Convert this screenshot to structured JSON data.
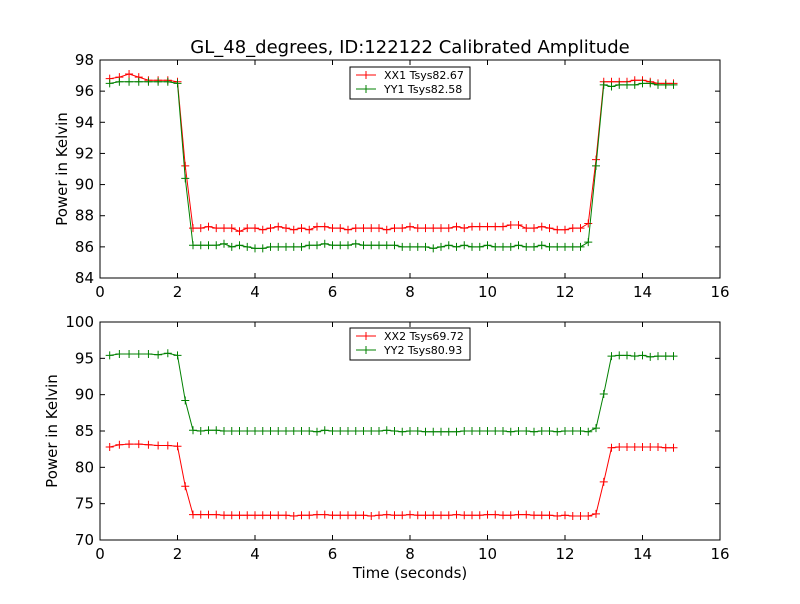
{
  "figure_title": "GL_48_degrees, ID:122122 Calibrated Amplitude",
  "colors": {
    "red": "#ff0000",
    "green": "#008000",
    "axes": "#000000"
  },
  "chart_data": [
    {
      "type": "line",
      "title": "GL_48_degrees, ID:122122 Calibrated Amplitude",
      "xlabel": "",
      "ylabel": "Power in Kelvin",
      "xlim": [
        0,
        16
      ],
      "ylim": [
        84,
        98
      ],
      "xticks": [
        0,
        2,
        4,
        6,
        8,
        10,
        12,
        14,
        16
      ],
      "yticks": [
        84,
        86,
        88,
        90,
        92,
        94,
        96,
        98
      ],
      "grid": false,
      "legend_position": "top-center",
      "x": [
        0.25,
        0.5,
        0.75,
        1.0,
        1.25,
        1.5,
        1.75,
        2.0,
        2.2,
        2.4,
        2.6,
        2.8,
        3.0,
        3.2,
        3.4,
        3.6,
        3.8,
        4.0,
        4.2,
        4.4,
        4.6,
        4.8,
        5.0,
        5.2,
        5.4,
        5.6,
        5.8,
        6.0,
        6.2,
        6.4,
        6.6,
        6.8,
        7.0,
        7.2,
        7.4,
        7.6,
        7.8,
        8.0,
        8.2,
        8.4,
        8.6,
        8.8,
        9.0,
        9.2,
        9.4,
        9.6,
        9.8,
        10.0,
        10.2,
        10.4,
        10.6,
        10.8,
        11.0,
        11.2,
        11.4,
        11.6,
        11.8,
        12.0,
        12.2,
        12.4,
        12.6,
        12.8,
        13.0,
        13.2,
        13.4,
        13.6,
        13.8,
        14.0,
        14.2,
        14.4,
        14.6,
        14.8
      ],
      "series": [
        {
          "name": "XX1 Tsys82.67",
          "color": "#ff0000",
          "values": [
            96.8,
            96.9,
            97.1,
            96.9,
            96.7,
            96.7,
            96.7,
            96.6,
            91.2,
            87.2,
            87.2,
            87.3,
            87.2,
            87.2,
            87.2,
            87.0,
            87.2,
            87.2,
            87.1,
            87.2,
            87.3,
            87.2,
            87.1,
            87.2,
            87.1,
            87.3,
            87.3,
            87.2,
            87.2,
            87.1,
            87.2,
            87.2,
            87.2,
            87.2,
            87.1,
            87.2,
            87.2,
            87.3,
            87.2,
            87.2,
            87.2,
            87.2,
            87.2,
            87.3,
            87.2,
            87.3,
            87.3,
            87.3,
            87.3,
            87.3,
            87.4,
            87.4,
            87.2,
            87.2,
            87.3,
            87.2,
            87.1,
            87.1,
            87.2,
            87.2,
            87.5,
            91.6,
            96.6,
            96.6,
            96.6,
            96.6,
            96.7,
            96.7,
            96.6,
            96.5,
            96.5,
            96.5
          ]
        },
        {
          "name": "YY1 Tsys82.58",
          "color": "#008000",
          "values": [
            96.5,
            96.6,
            96.6,
            96.6,
            96.6,
            96.6,
            96.6,
            96.5,
            90.4,
            86.1,
            86.1,
            86.1,
            86.1,
            86.2,
            86.0,
            86.1,
            86.0,
            85.9,
            85.9,
            86.0,
            86.0,
            86.0,
            86.0,
            86.0,
            86.1,
            86.1,
            86.2,
            86.1,
            86.1,
            86.1,
            86.2,
            86.1,
            86.1,
            86.1,
            86.1,
            86.1,
            86.0,
            86.0,
            86.0,
            86.0,
            85.9,
            86.0,
            86.1,
            86.0,
            86.1,
            86.0,
            86.0,
            86.1,
            86.0,
            86.0,
            86.0,
            86.1,
            86.0,
            86.0,
            86.1,
            86.0,
            86.0,
            86.0,
            86.0,
            86.0,
            86.3,
            91.2,
            96.4,
            96.3,
            96.4,
            96.4,
            96.4,
            96.5,
            96.5,
            96.4,
            96.4,
            96.4
          ]
        }
      ]
    },
    {
      "type": "line",
      "title": "",
      "xlabel": "Time (seconds)",
      "ylabel": "Power in Kelvin",
      "xlim": [
        0,
        16
      ],
      "ylim": [
        70,
        100
      ],
      "xticks": [
        0,
        2,
        4,
        6,
        8,
        10,
        12,
        14,
        16
      ],
      "yticks": [
        70,
        75,
        80,
        85,
        90,
        95,
        100
      ],
      "grid": false,
      "legend_position": "top-center",
      "x": [
        0.25,
        0.5,
        0.75,
        1.0,
        1.25,
        1.5,
        1.75,
        2.0,
        2.2,
        2.4,
        2.6,
        2.8,
        3.0,
        3.2,
        3.4,
        3.6,
        3.8,
        4.0,
        4.2,
        4.4,
        4.6,
        4.8,
        5.0,
        5.2,
        5.4,
        5.6,
        5.8,
        6.0,
        6.2,
        6.4,
        6.6,
        6.8,
        7.0,
        7.2,
        7.4,
        7.6,
        7.8,
        8.0,
        8.2,
        8.4,
        8.6,
        8.8,
        9.0,
        9.2,
        9.4,
        9.6,
        9.8,
        10.0,
        10.2,
        10.4,
        10.6,
        10.8,
        11.0,
        11.2,
        11.4,
        11.6,
        11.8,
        12.0,
        12.2,
        12.4,
        12.6,
        12.8,
        13.0,
        13.2,
        13.4,
        13.6,
        13.8,
        14.0,
        14.2,
        14.4,
        14.6,
        14.8
      ],
      "series": [
        {
          "name": "XX2 Tsys69.72",
          "color": "#ff0000",
          "values": [
            82.8,
            83.1,
            83.2,
            83.2,
            83.1,
            83.0,
            83.0,
            82.9,
            77.4,
            73.5,
            73.5,
            73.5,
            73.5,
            73.4,
            73.4,
            73.4,
            73.4,
            73.4,
            73.4,
            73.4,
            73.4,
            73.4,
            73.3,
            73.4,
            73.4,
            73.5,
            73.5,
            73.4,
            73.4,
            73.4,
            73.4,
            73.4,
            73.3,
            73.4,
            73.5,
            73.4,
            73.4,
            73.5,
            73.4,
            73.4,
            73.4,
            73.4,
            73.4,
            73.5,
            73.4,
            73.4,
            73.4,
            73.5,
            73.5,
            73.4,
            73.4,
            73.5,
            73.5,
            73.4,
            73.4,
            73.4,
            73.3,
            73.4,
            73.3,
            73.3,
            73.3,
            73.6,
            78.0,
            82.7,
            82.8,
            82.8,
            82.8,
            82.8,
            82.8,
            82.8,
            82.7,
            82.7
          ]
        },
        {
          "name": "YY2 Tsys80.93",
          "color": "#008000",
          "values": [
            95.4,
            95.6,
            95.6,
            95.6,
            95.6,
            95.5,
            95.7,
            95.4,
            89.2,
            85.1,
            85.0,
            85.1,
            85.1,
            85.0,
            85.0,
            85.0,
            85.0,
            85.0,
            85.0,
            85.0,
            85.0,
            85.0,
            85.0,
            85.0,
            85.0,
            84.9,
            85.1,
            85.0,
            85.0,
            85.0,
            85.0,
            85.0,
            85.0,
            85.0,
            85.1,
            85.0,
            84.9,
            85.0,
            85.0,
            84.9,
            84.9,
            84.9,
            84.9,
            84.9,
            85.0,
            85.0,
            85.0,
            85.0,
            85.0,
            85.0,
            84.9,
            85.0,
            85.0,
            84.9,
            85.0,
            85.0,
            84.9,
            85.0,
            85.0,
            85.0,
            84.9,
            85.4,
            90.1,
            95.3,
            95.4,
            95.4,
            95.3,
            95.4,
            95.2,
            95.3,
            95.3,
            95.3
          ]
        }
      ]
    }
  ]
}
